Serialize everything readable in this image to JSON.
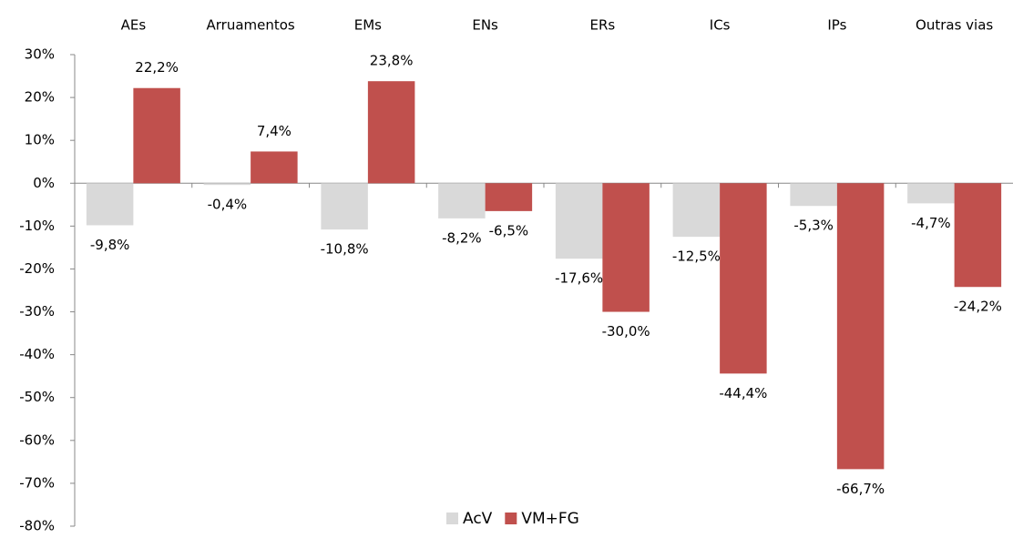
{
  "chart_data": {
    "type": "bar",
    "categories": [
      "AEs",
      "Arruamentos",
      "EMs",
      "ENs",
      "ERs",
      "ICs",
      "IPs",
      "Outras vias"
    ],
    "series": [
      {
        "name": "AcV",
        "color": "#d9d9d9",
        "values": [
          -9.8,
          -0.4,
          -10.8,
          -8.2,
          -17.6,
          -12.5,
          -5.3,
          -4.7
        ],
        "value_labels": [
          "-9,8%",
          "-0,4%",
          "-10,8%",
          "-8,2%",
          "-17,6%",
          "-12,5%",
          "-5,3%",
          "-4,7%"
        ]
      },
      {
        "name": "VM+FG",
        "color": "#c0504d",
        "values": [
          22.2,
          7.4,
          23.8,
          -6.5,
          -30.0,
          -44.4,
          -66.7,
          -24.2
        ],
        "value_labels": [
          "22,2%",
          "7,4%",
          "23,8%",
          "-6,5%",
          "-30,0%",
          "-44,4%",
          "-66,7%",
          "-24,2%"
        ]
      }
    ],
    "ylim": [
      -80,
      30
    ],
    "yticks": [
      {
        "value": 30,
        "label": "30%"
      },
      {
        "value": 20,
        "label": "20%"
      },
      {
        "value": 10,
        "label": "10%"
      },
      {
        "value": 0,
        "label": "0%"
      },
      {
        "value": -10,
        "label": "-10%"
      },
      {
        "value": -20,
        "label": "-20%"
      },
      {
        "value": -30,
        "label": "-30%"
      },
      {
        "value": -40,
        "label": "-40%"
      },
      {
        "value": -50,
        "label": "-50%"
      },
      {
        "value": -60,
        "label": "-60%"
      },
      {
        "value": -70,
        "label": "-70%"
      },
      {
        "value": -80,
        "label": "-80%"
      }
    ],
    "legend": "bottom"
  }
}
